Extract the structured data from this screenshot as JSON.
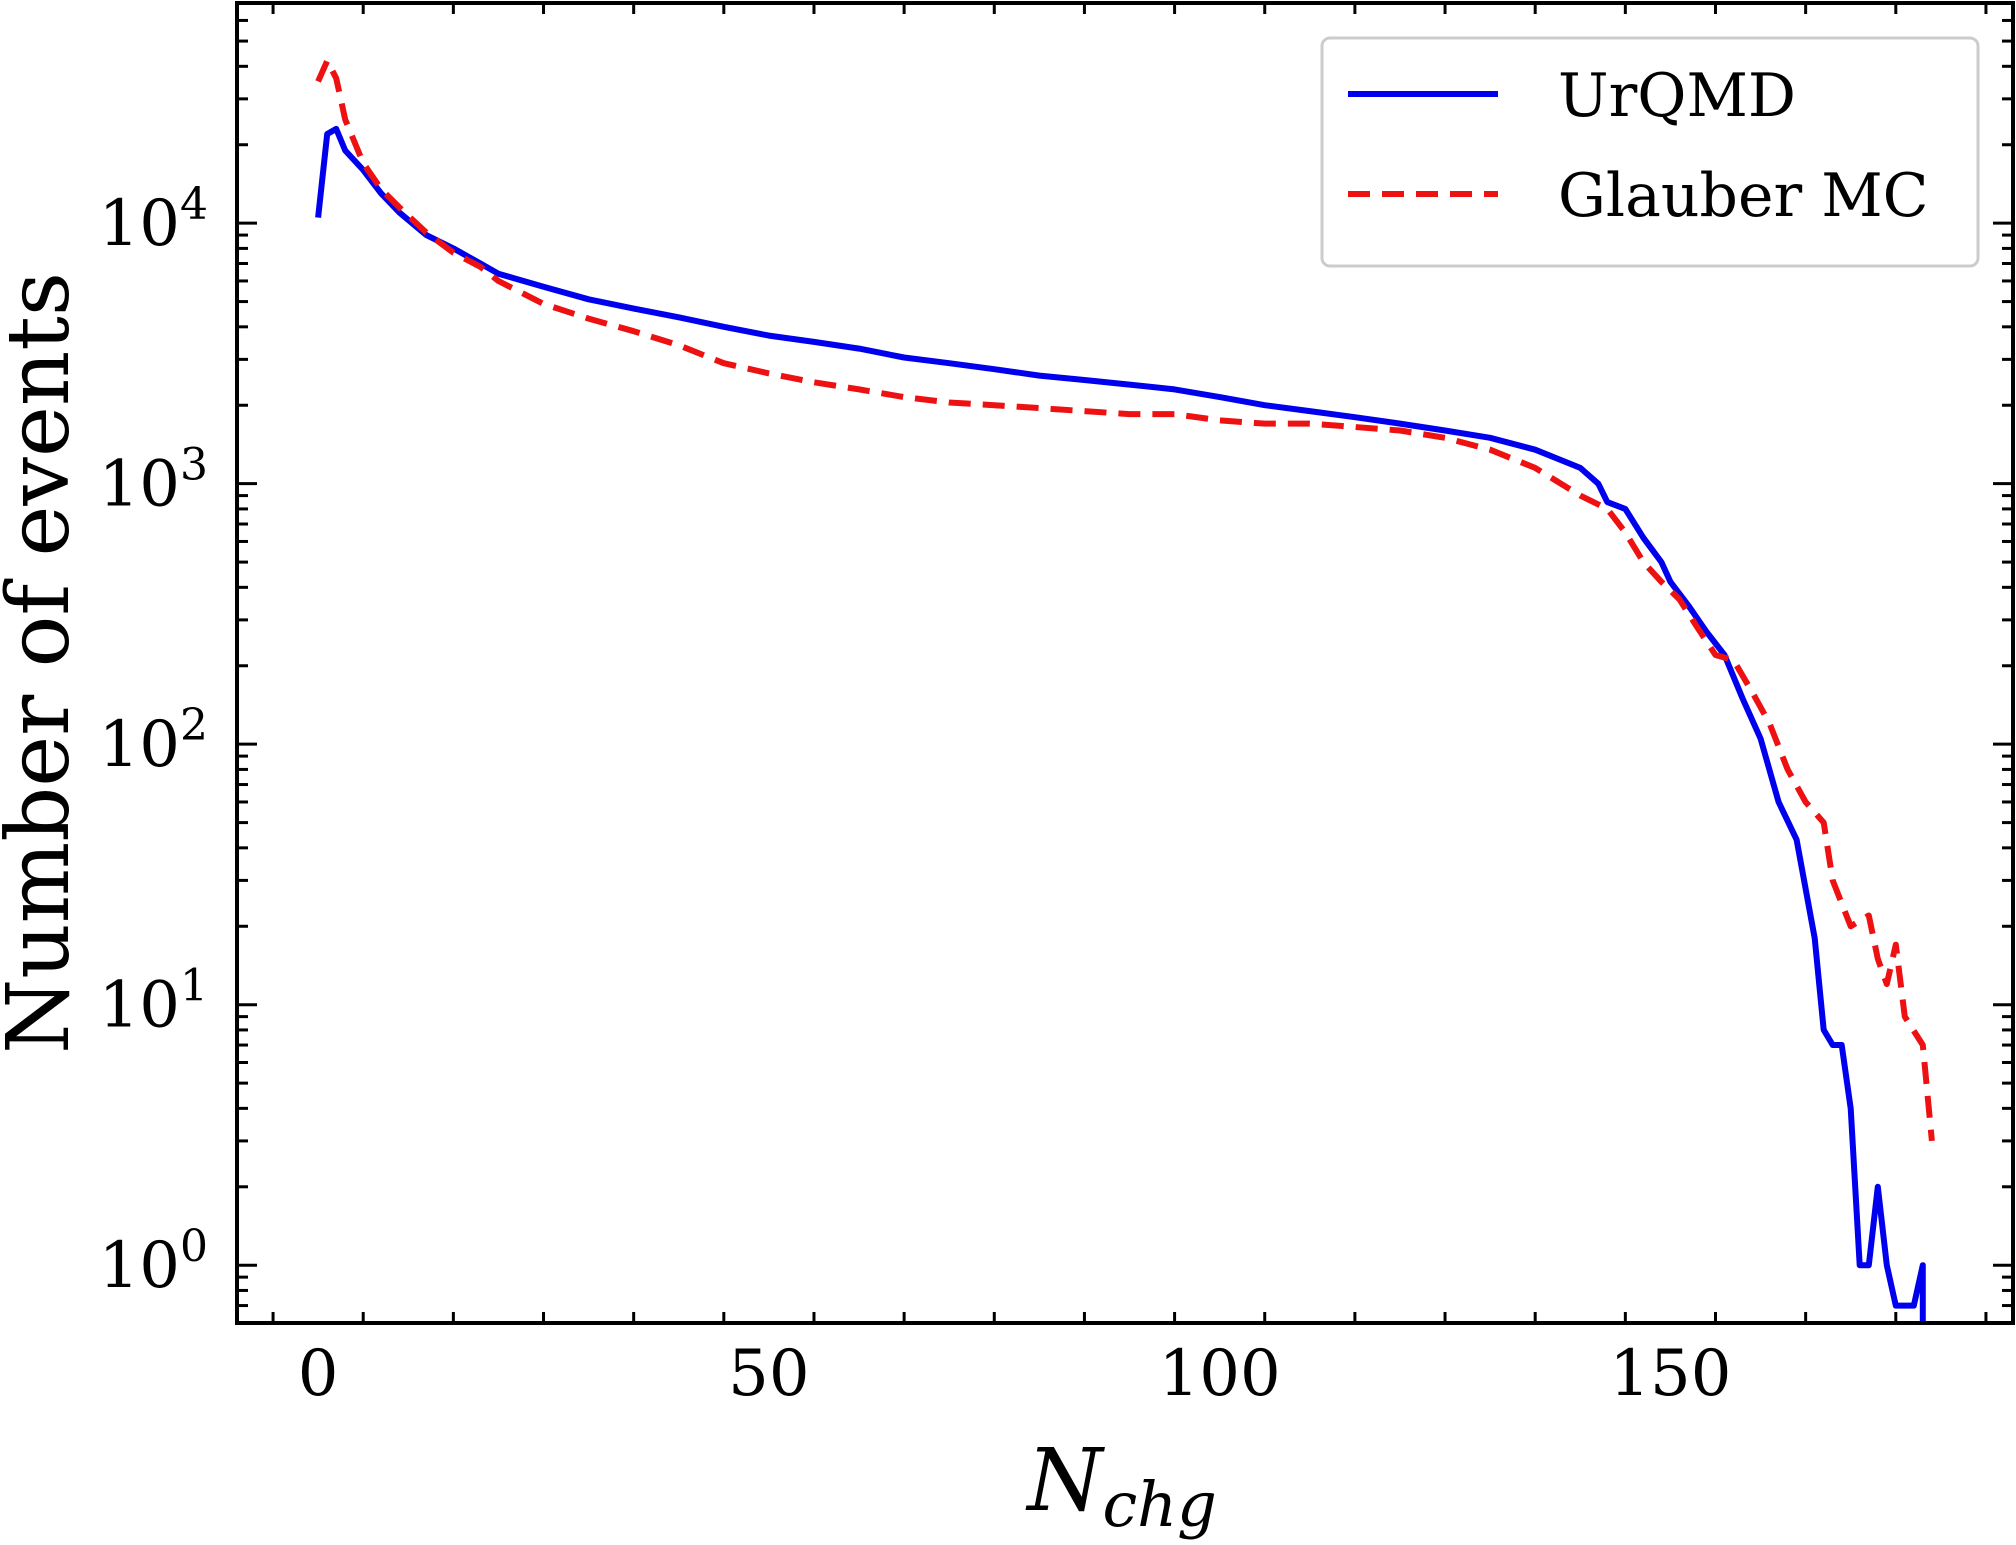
{
  "chart_data": {
    "type": "line",
    "title": "",
    "xlabel": "N",
    "xlabel_subscript": "chg",
    "ylabel": "Number of events",
    "xlim": [
      -9,
      188
    ],
    "ylim": [
      0.6,
      70000
    ],
    "yscale": "log",
    "x_ticks": [
      0,
      50,
      100,
      150
    ],
    "x_tick_labels": [
      "0",
      "50",
      "100",
      "150"
    ],
    "y_ticks": [
      1,
      10,
      100,
      1000,
      10000
    ],
    "y_tick_labels": [
      {
        "base": "10",
        "exp": "0"
      },
      {
        "base": "10",
        "exp": "1"
      },
      {
        "base": "10",
        "exp": "2"
      },
      {
        "base": "10",
        "exp": "3"
      },
      {
        "base": "10",
        "exp": "4"
      }
    ],
    "grid": false,
    "legend_position": "top-right",
    "series": [
      {
        "name": "UrQMD",
        "color": "#0000ee",
        "style": "solid",
        "points": [
          [
            0,
            10500
          ],
          [
            1,
            22000
          ],
          [
            2,
            23000
          ],
          [
            3,
            19000
          ],
          [
            5,
            16000
          ],
          [
            7,
            13000
          ],
          [
            9,
            11000
          ],
          [
            12,
            9000
          ],
          [
            15,
            8000
          ],
          [
            18,
            7000
          ],
          [
            20,
            6400
          ],
          [
            25,
            5700
          ],
          [
            30,
            5100
          ],
          [
            35,
            4700
          ],
          [
            40,
            4350
          ],
          [
            45,
            4000
          ],
          [
            50,
            3700
          ],
          [
            55,
            3500
          ],
          [
            60,
            3300
          ],
          [
            65,
            3050
          ],
          [
            70,
            2900
          ],
          [
            75,
            2750
          ],
          [
            80,
            2600
          ],
          [
            85,
            2500
          ],
          [
            90,
            2400
          ],
          [
            95,
            2300
          ],
          [
            100,
            2150
          ],
          [
            105,
            2000
          ],
          [
            110,
            1900
          ],
          [
            115,
            1800
          ],
          [
            120,
            1700
          ],
          [
            125,
            1600
          ],
          [
            130,
            1500
          ],
          [
            135,
            1350
          ],
          [
            140,
            1150
          ],
          [
            142,
            1000
          ],
          [
            143,
            850
          ],
          [
            145,
            800
          ],
          [
            147,
            620
          ],
          [
            149,
            500
          ],
          [
            150,
            420
          ],
          [
            152,
            340
          ],
          [
            154,
            270
          ],
          [
            156,
            220
          ],
          [
            158,
            150
          ],
          [
            160,
            105
          ],
          [
            162,
            60
          ],
          [
            164,
            43
          ],
          [
            166,
            18
          ],
          [
            167,
            8
          ],
          [
            168,
            7
          ],
          [
            169,
            7
          ],
          [
            170,
            4
          ],
          [
            171,
            1
          ],
          [
            172,
            1
          ],
          [
            173,
            2
          ],
          [
            174,
            1
          ],
          [
            175,
            0.7
          ],
          [
            177,
            0.7
          ],
          [
            178,
            1
          ],
          [
            178,
            0.5
          ]
        ]
      },
      {
        "name": "Glauber MC",
        "color": "#ee1111",
        "style": "dashed",
        "points": [
          [
            0,
            35000
          ],
          [
            1,
            42000
          ],
          [
            2,
            36000
          ],
          [
            3,
            25000
          ],
          [
            5,
            17000
          ],
          [
            7,
            13500
          ],
          [
            9,
            11500
          ],
          [
            12,
            9200
          ],
          [
            15,
            7700
          ],
          [
            18,
            6800
          ],
          [
            20,
            6000
          ],
          [
            25,
            4900
          ],
          [
            30,
            4300
          ],
          [
            35,
            3850
          ],
          [
            40,
            3400
          ],
          [
            45,
            2900
          ],
          [
            50,
            2650
          ],
          [
            55,
            2450
          ],
          [
            60,
            2300
          ],
          [
            65,
            2150
          ],
          [
            70,
            2050
          ],
          [
            75,
            2000
          ],
          [
            80,
            1950
          ],
          [
            85,
            1900
          ],
          [
            90,
            1850
          ],
          [
            95,
            1850
          ],
          [
            100,
            1750
          ],
          [
            105,
            1700
          ],
          [
            110,
            1700
          ],
          [
            115,
            1650
          ],
          [
            120,
            1600
          ],
          [
            125,
            1500
          ],
          [
            130,
            1350
          ],
          [
            135,
            1150
          ],
          [
            140,
            900
          ],
          [
            143,
            800
          ],
          [
            145,
            650
          ],
          [
            147,
            500
          ],
          [
            149,
            420
          ],
          [
            151,
            360
          ],
          [
            153,
            280
          ],
          [
            155,
            220
          ],
          [
            157,
            210
          ],
          [
            159,
            160
          ],
          [
            161,
            120
          ],
          [
            163,
            80
          ],
          [
            165,
            60
          ],
          [
            167,
            50
          ],
          [
            168,
            30
          ],
          [
            170,
            20
          ],
          [
            172,
            22
          ],
          [
            173,
            15
          ],
          [
            174,
            12
          ],
          [
            175,
            17
          ],
          [
            176,
            9
          ],
          [
            178,
            7
          ],
          [
            179,
            3
          ]
        ]
      }
    ]
  }
}
